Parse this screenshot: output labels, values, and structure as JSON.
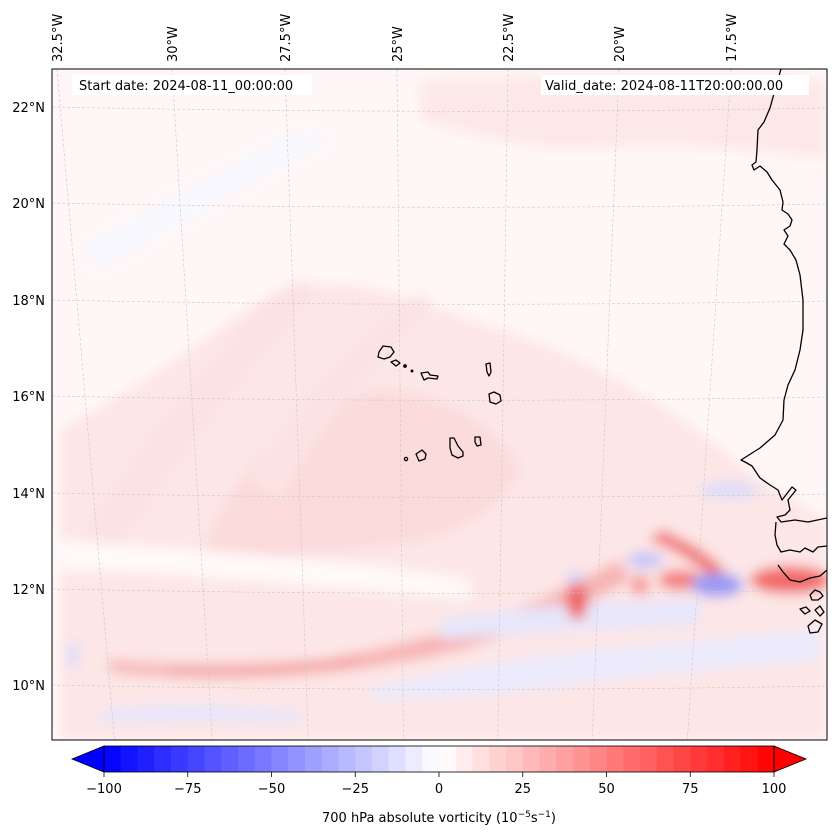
{
  "map": {
    "projection_extent": {
      "lon_min": -33.0,
      "lon_max": -15.5,
      "lat_min": 8.8,
      "lat_max": 22.8
    },
    "start_date_label": "Start date: 2024-08-11_00:00:00",
    "valid_date_label": "Valid_date: 2024-08-11T20:00:00.00",
    "lon_ticks": [
      {
        "value": -32.5,
        "label": "32.5°W"
      },
      {
        "value": -30.0,
        "label": "30°W"
      },
      {
        "value": -27.5,
        "label": "27.5°W"
      },
      {
        "value": -25.0,
        "label": "25°W"
      },
      {
        "value": -22.5,
        "label": "22.5°W"
      },
      {
        "value": -20.0,
        "label": "20°W"
      },
      {
        "value": -17.5,
        "label": "17.5°W"
      }
    ],
    "lat_ticks": [
      {
        "value": 22,
        "label": "22°N"
      },
      {
        "value": 20,
        "label": "20°N"
      },
      {
        "value": 18,
        "label": "18°N"
      },
      {
        "value": 16,
        "label": "16°N"
      },
      {
        "value": 14,
        "label": "14°N"
      },
      {
        "value": 12,
        "label": "12°N"
      },
      {
        "value": 10,
        "label": "10°N"
      }
    ],
    "features": [
      "coastline-west-africa",
      "cape-verde-islands"
    ]
  },
  "colorbar": {
    "label_main": "700 hPa absolute vorticity (10",
    "label_exp1": "−5",
    "label_mid": "s",
    "label_exp2": "−1",
    "label_end": ")",
    "min": -100,
    "max": 100,
    "step": 5,
    "extend": "both",
    "colormap": "bwr",
    "ticks": [
      {
        "value": -100,
        "label": "−100"
      },
      {
        "value": -75,
        "label": "−75"
      },
      {
        "value": -50,
        "label": "−50"
      },
      {
        "value": -25,
        "label": "−25"
      },
      {
        "value": 0,
        "label": "0"
      },
      {
        "value": 25,
        "label": "25"
      },
      {
        "value": 50,
        "label": "50"
      },
      {
        "value": 75,
        "label": "75"
      },
      {
        "value": 100,
        "label": "100"
      }
    ],
    "low_color": "#0000ff",
    "mid_color": "#ffffff",
    "high_color": "#ff0000"
  },
  "chart_data": {
    "type": "heatmap",
    "title": "",
    "variable": "700 hPa absolute vorticity",
    "units": "10^-5 s^-1",
    "xlabel": "",
    "ylabel": "",
    "xlim": [
      -33.0,
      -15.5
    ],
    "ylim": [
      8.8,
      22.8
    ],
    "vrange": [
      -100,
      100
    ],
    "grid": true,
    "background_value": 3,
    "features": [
      {
        "name": "broad-positive-band",
        "lon": -26.5,
        "lat": 14.8,
        "value": 12
      },
      {
        "name": "cyclonic-streamer-south",
        "lon": -29.0,
        "lat": 10.5,
        "value": 20
      },
      {
        "name": "itcz-positive-max",
        "lon": -21.5,
        "lat": 11.8,
        "value": 45
      },
      {
        "name": "positive-lobe-east",
        "lon": -18.2,
        "lat": 12.8,
        "value": 35
      },
      {
        "name": "coastal-positive-max",
        "lon": -16.2,
        "lat": 12.3,
        "value": 40
      },
      {
        "name": "negative-core-east",
        "lon": -17.8,
        "lat": 12.0,
        "value": -25
      },
      {
        "name": "negative-core-center",
        "lon": -20.0,
        "lat": 12.5,
        "value": -15
      },
      {
        "name": "negative-band-south",
        "lon": -20.0,
        "lat": 10.8,
        "value": -10
      },
      {
        "name": "negative-band-sw",
        "lon": -28.5,
        "lat": 9.3,
        "value": -8
      }
    ]
  }
}
